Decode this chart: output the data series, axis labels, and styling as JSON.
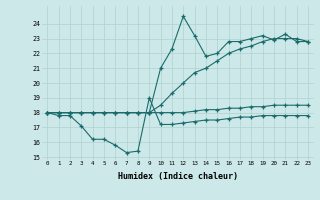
{
  "xlabel": "Humidex (Indice chaleur)",
  "xlim": [
    -0.5,
    23.5
  ],
  "ylim": [
    14.8,
    25.2
  ],
  "yticks": [
    15,
    16,
    17,
    18,
    19,
    20,
    21,
    22,
    23,
    24
  ],
  "xticks": [
    0,
    1,
    2,
    3,
    4,
    5,
    6,
    7,
    8,
    9,
    10,
    11,
    12,
    13,
    14,
    15,
    16,
    17,
    18,
    19,
    20,
    21,
    22,
    23
  ],
  "bg_color": "#cde8e8",
  "line_color": "#1a6b6b",
  "grid_color": "#b0d0d0",
  "series": [
    [
      18.0,
      17.8,
      17.8,
      17.1,
      16.2,
      16.2,
      15.8,
      15.3,
      15.4,
      19.0,
      17.2,
      17.2,
      17.3,
      17.4,
      17.5,
      17.5,
      17.6,
      17.7,
      17.7,
      17.8,
      17.8,
      17.8,
      17.8,
      17.8
    ],
    [
      18.0,
      18.0,
      18.0,
      18.0,
      18.0,
      18.0,
      18.0,
      18.0,
      18.0,
      18.0,
      18.0,
      18.0,
      18.0,
      18.1,
      18.2,
      18.2,
      18.3,
      18.3,
      18.4,
      18.4,
      18.5,
      18.5,
      18.5,
      18.5
    ],
    [
      18.0,
      18.0,
      18.0,
      18.0,
      18.0,
      18.0,
      18.0,
      18.0,
      18.0,
      18.0,
      18.5,
      19.3,
      20.0,
      20.7,
      21.0,
      21.5,
      22.0,
      22.3,
      22.5,
      22.8,
      23.0,
      23.0,
      23.0,
      22.8
    ],
    [
      18.0,
      18.0,
      18.0,
      18.0,
      18.0,
      18.0,
      18.0,
      18.0,
      18.0,
      18.0,
      21.0,
      22.3,
      24.5,
      23.2,
      21.8,
      22.0,
      22.8,
      22.8,
      23.0,
      23.2,
      22.9,
      23.3,
      22.8,
      22.8
    ]
  ]
}
